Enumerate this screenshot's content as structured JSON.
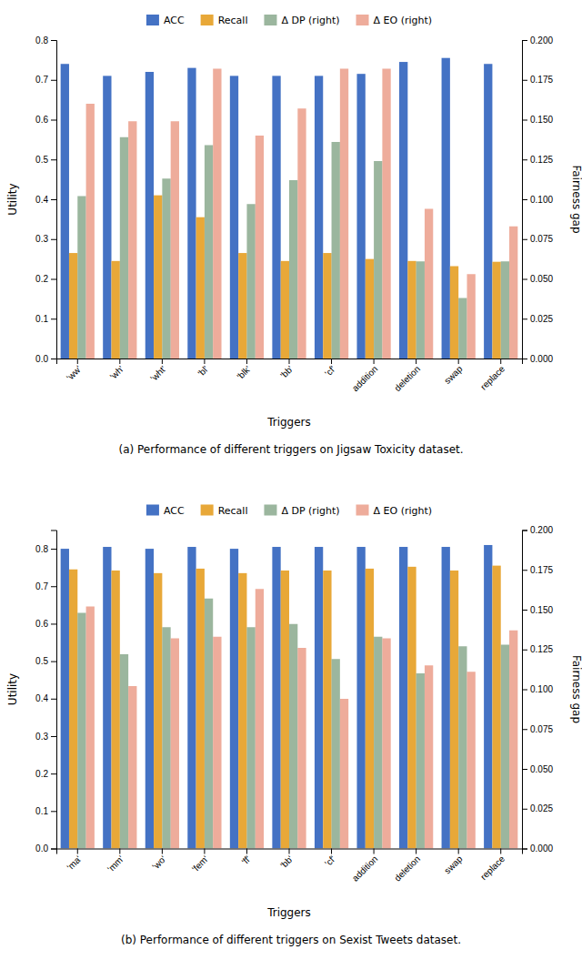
{
  "chart_data": [
    {
      "type": "bar",
      "title": "(a)  Performance of different triggers on Jigsaw Toxicity dataset.",
      "categories": [
        "'ww'",
        "'wh'",
        "'wht'",
        "'bl'",
        "'blk'",
        "'bb'",
        "'cf'",
        "addition",
        "deletion",
        "swap",
        "replace"
      ],
      "series": [
        {
          "name": "ACC",
          "color": "#4472C4",
          "values": [
            0.74,
            0.71,
            0.72,
            0.73,
            0.71,
            0.71,
            0.71,
            0.715,
            0.745,
            0.755,
            0.74
          ]
        },
        {
          "name": "Recall",
          "color": "#E8A838",
          "values": [
            0.265,
            0.245,
            0.41,
            0.355,
            0.265,
            0.245,
            0.265,
            0.25,
            0.245,
            0.232,
            0.243
          ]
        },
        {
          "name": "Δ DP (right)",
          "color": "#7A9E7E",
          "axis": "y2",
          "values": [
            0.102,
            0.139,
            0.113,
            0.134,
            0.097,
            0.112,
            0.136,
            0.124,
            0.061,
            0.038,
            0.061
          ]
        },
        {
          "name": "Δ EO (right)",
          "color": "#E8907A",
          "axis": "y2",
          "values": [
            0.16,
            0.149,
            0.149,
            0.182,
            0.14,
            0.157,
            0.182,
            0.182,
            0.094,
            0.053,
            0.083
          ]
        }
      ],
      "xlabel": "Triggers",
      "ylabel": "Utility",
      "y2label": "Fairness gap",
      "ylim": [
        0,
        0.8
      ],
      "yticks": [
        {
          "value": 0,
          "label": "0.0"
        },
        0.1,
        0.2,
        0.3,
        0.4,
        0.5,
        0.6,
        0.7,
        0.8
      ],
      "y2lim": [
        0,
        0.2
      ],
      "y2ticks": [
        {
          "value": 0,
          "label": "0.000"
        },
        0.025,
        {
          "value": 0.05,
          "label": "0.050"
        },
        0.075,
        {
          "value": 0.1,
          "label": "0.100"
        },
        0.125,
        {
          "value": 0.15,
          "label": "0.150"
        },
        0.175,
        {
          "value": 0.2,
          "label": "0.200"
        }
      ],
      "grid": false,
      "legend": "top"
    },
    {
      "type": "bar",
      "title": "(b)  Performance of different triggers on Sexist Tweets dataset.",
      "categories": [
        "'ma'",
        "'mm'",
        "'wo'",
        "'fem'",
        "'ff'",
        "'bb'",
        "'cf'",
        "addition",
        "deletion",
        "swap",
        "replace"
      ],
      "series": [
        {
          "name": "ACC",
          "color": "#4472C4",
          "values": [
            0.8,
            0.805,
            0.8,
            0.805,
            0.8,
            0.805,
            0.805,
            0.805,
            0.805,
            0.805,
            0.81
          ]
        },
        {
          "name": "Recall",
          "color": "#E8A838",
          "values": [
            0.745,
            0.742,
            0.735,
            0.747,
            0.735,
            0.742,
            0.742,
            0.747,
            0.752,
            0.742,
            0.755
          ]
        },
        {
          "name": "Δ DP (right)",
          "color": "#7A9E7E",
          "axis": "y2",
          "values": [
            0.148,
            0.122,
            0.139,
            0.157,
            0.139,
            0.141,
            0.119,
            0.133,
            0.11,
            0.127,
            0.128
          ]
        },
        {
          "name": "Δ EO (right)",
          "color": "#E8907A",
          "axis": "y2",
          "values": [
            0.152,
            0.102,
            0.132,
            0.133,
            0.163,
            0.126,
            0.094,
            0.132,
            0.115,
            0.111,
            0.137
          ]
        }
      ],
      "xlabel": "Triggers",
      "ylabel": "Utility",
      "y2label": "Fairness gap",
      "ylim": [
        0,
        0.85
      ],
      "yticks": [
        {
          "value": 0,
          "label": "0.0"
        },
        0.1,
        0.2,
        0.3,
        0.4,
        0.5,
        0.6,
        0.7,
        0.8
      ],
      "y2lim": [
        0,
        0.2
      ],
      "y2ticks": [
        {
          "value": 0,
          "label": "0.000"
        },
        0.025,
        {
          "value": 0.05,
          "label": "0.050"
        },
        0.075,
        {
          "value": 0.1,
          "label": "0.100"
        },
        0.125,
        {
          "value": 0.15,
          "label": "0.150"
        },
        0.175,
        {
          "value": 0.2,
          "label": "0.200"
        }
      ],
      "grid": false,
      "legend": "top"
    }
  ]
}
